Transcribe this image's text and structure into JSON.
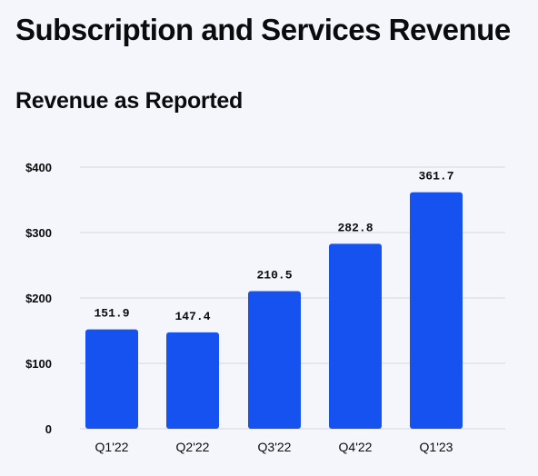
{
  "header": {
    "title": "Subscription and Services Revenue",
    "subtitle": "Revenue as Reported"
  },
  "colors": {
    "bar": "#1652f0",
    "grid": "#d6d8de",
    "background": "#f5f6fb"
  },
  "chart_data": {
    "type": "bar",
    "title": "Subscription and Services Revenue",
    "subtitle": "Revenue as Reported",
    "categories": [
      "Q1'22",
      "Q2'22",
      "Q3'22",
      "Q4'22",
      "Q1'23"
    ],
    "values": [
      151.9,
      147.4,
      210.5,
      282.8,
      361.7
    ],
    "data_labels": [
      "151.9",
      "147.4",
      "210.5",
      "282.8",
      "361.7"
    ],
    "ylim": [
      0,
      400
    ],
    "yticks": [
      0,
      100,
      200,
      300,
      400
    ],
    "ytick_labels": [
      "0",
      "$100",
      "$200",
      "$300",
      "$400"
    ],
    "grid": true,
    "legend": "none"
  }
}
